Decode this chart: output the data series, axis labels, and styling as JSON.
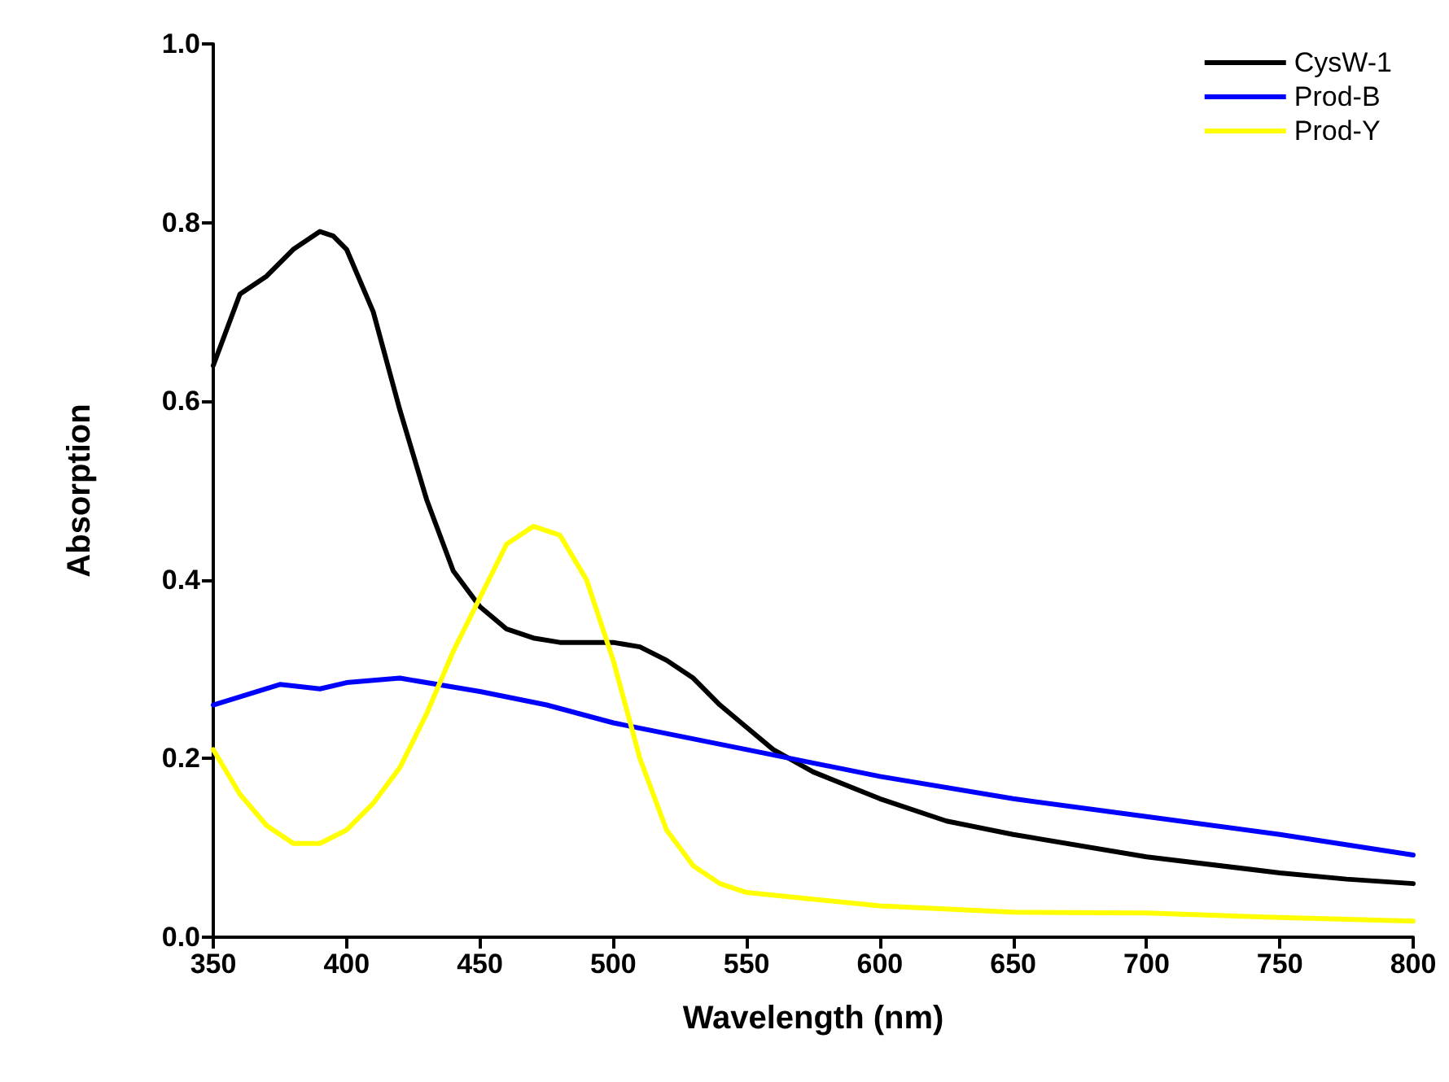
{
  "chart_data": {
    "type": "line",
    "xlabel": "Wavelength (nm)",
    "ylabel": "Absorption",
    "xlim": [
      350,
      800
    ],
    "xticks": [
      350,
      400,
      450,
      500,
      550,
      600,
      650,
      700,
      750,
      800
    ],
    "ylim": [
      0,
      1
    ],
    "yticks": [
      {
        "value": 0,
        "label": "0.0"
      },
      {
        "value": 0.2,
        "label": "0.2"
      },
      {
        "value": 0.4,
        "label": "0.4"
      },
      {
        "value": 0.6,
        "label": "0.6"
      },
      {
        "value": 0.8,
        "label": "0.8"
      },
      {
        "value": 1,
        "label": "1.0"
      }
    ],
    "grid": false,
    "legend": "top right",
    "marker": "none",
    "line_style": "solid",
    "series": [
      {
        "name": "CysW-1",
        "color": "#000000",
        "x": [
          350,
          360,
          370,
          380,
          390,
          395,
          400,
          410,
          420,
          430,
          440,
          450,
          460,
          470,
          480,
          490,
          500,
          510,
          520,
          530,
          540,
          550,
          560,
          575,
          600,
          625,
          650,
          700,
          750,
          775,
          800
        ],
        "values": [
          0.64,
          0.72,
          0.74,
          0.77,
          0.79,
          0.785,
          0.77,
          0.7,
          0.59,
          0.49,
          0.41,
          0.37,
          0.345,
          0.335,
          0.33,
          0.33,
          0.33,
          0.325,
          0.31,
          0.29,
          0.26,
          0.235,
          0.21,
          0.185,
          0.155,
          0.13,
          0.115,
          0.09,
          0.072,
          0.065,
          0.06
        ]
      },
      {
        "name": "Prod-B",
        "color": "#0000ff",
        "x": [
          350,
          375,
          390,
          400,
          420,
          450,
          475,
          500,
          550,
          600,
          650,
          700,
          750,
          800
        ],
        "values": [
          0.26,
          0.283,
          0.278,
          0.285,
          0.29,
          0.275,
          0.26,
          0.24,
          0.21,
          0.18,
          0.155,
          0.135,
          0.115,
          0.092
        ]
      },
      {
        "name": "Prod-Y",
        "color": "#ffff00",
        "x": [
          350,
          360,
          370,
          380,
          390,
          400,
          410,
          420,
          430,
          440,
          450,
          460,
          470,
          480,
          490,
          500,
          510,
          520,
          530,
          540,
          550,
          600,
          650,
          700,
          750,
          800
        ],
        "values": [
          0.21,
          0.16,
          0.125,
          0.105,
          0.105,
          0.12,
          0.15,
          0.19,
          0.25,
          0.32,
          0.38,
          0.44,
          0.46,
          0.45,
          0.4,
          0.31,
          0.2,
          0.12,
          0.08,
          0.06,
          0.05,
          0.035,
          0.028,
          0.027,
          0.022,
          0.018
        ]
      }
    ]
  }
}
